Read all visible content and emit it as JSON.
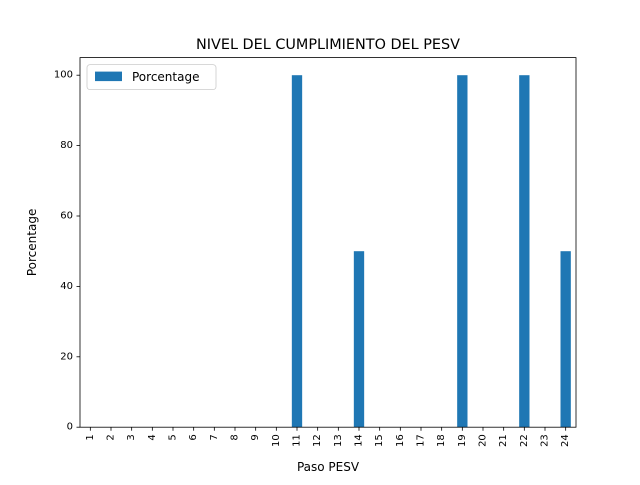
{
  "chart_data": {
    "type": "bar",
    "title": "NIVEL DEL CUMPLIMIENTO DEL PESV",
    "xlabel": "Paso PESV",
    "ylabel": "Porcentage",
    "categories": [
      "1",
      "2",
      "3",
      "4",
      "5",
      "6",
      "7",
      "8",
      "9",
      "10",
      "11",
      "12",
      "13",
      "14",
      "15",
      "16",
      "17",
      "18",
      "19",
      "20",
      "21",
      "22",
      "23",
      "24"
    ],
    "series": [
      {
        "name": "Porcentage",
        "values": [
          0,
          0,
          0,
          0,
          0,
          0,
          0,
          0,
          0,
          0,
          100,
          0,
          0,
          50,
          0,
          0,
          0,
          0,
          100,
          0,
          0,
          100,
          0,
          50
        ],
        "color": "#1f77b4"
      }
    ],
    "y_ticks": [
      0,
      20,
      40,
      60,
      80,
      100
    ],
    "ylim": [
      0,
      105
    ],
    "legend_position": "top-left",
    "grid": false
  }
}
